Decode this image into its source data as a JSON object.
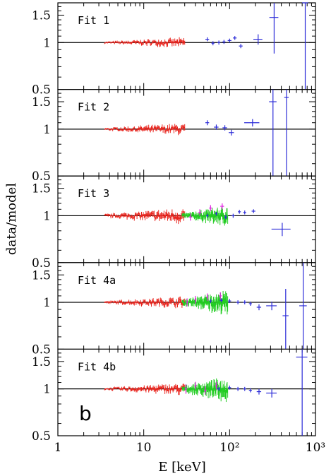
{
  "chart_data": {
    "type": "scatter",
    "xlabel": "E [keV]",
    "ylabel": "data/model",
    "xscale": "log",
    "yscale": "log",
    "xlim": [
      1,
      1000
    ],
    "ylim": [
      0.5,
      1.8
    ],
    "x_tick_labels": [
      "1",
      "10",
      "10²",
      "10³"
    ],
    "y_tick_labels": [
      "0.5",
      "1",
      "1.5"
    ],
    "reference_line": 1,
    "annotation": "b",
    "colors": {
      "red": "#e8231c",
      "blue": "#2c2cd8",
      "green": "#22cc22",
      "magenta": "#e020e0"
    },
    "panels": [
      {
        "label": "Fit 1",
        "series": [
          {
            "color": "red",
            "kind": "dense",
            "x_range": [
              3.5,
              30
            ],
            "scatter": 0.025
          },
          {
            "color": "blue",
            "kind": "points",
            "points": [
              [
                55,
                1.05,
                0.05,
                0.03
              ],
              [
                64,
                0.99,
                0.04,
                0.03
              ],
              [
                75,
                1.0,
                0.04,
                0.03
              ],
              [
                86,
                1.01,
                0.04,
                0.03
              ],
              [
                100,
                1.03,
                0.05,
                0.03
              ],
              [
                115,
                1.07,
                0.05,
                0.03
              ],
              [
                135,
                0.95,
                0.05,
                0.03
              ],
              [
                215,
                1.05,
                0.12,
                0.08
              ],
              [
                330,
                1.45,
                0.12,
                0.6
              ],
              [
                760,
                1.8,
                0.08,
                1.3
              ]
            ]
          }
        ]
      },
      {
        "label": "Fit 2",
        "series": [
          {
            "color": "red",
            "kind": "dense",
            "x_range": [
              3.5,
              30
            ],
            "scatter": 0.03
          },
          {
            "color": "blue",
            "kind": "points",
            "points": [
              [
                55,
                1.1,
                0.05,
                0.04
              ],
              [
                70,
                1.03,
                0.06,
                0.04
              ],
              [
                88,
                1.02,
                0.06,
                0.04
              ],
              [
                105,
                0.95,
                0.07,
                0.04
              ],
              [
                185,
                1.1,
                0.2,
                0.06
              ],
              [
                320,
                1.5,
                0.1,
                1.0
              ],
              [
                460,
                1.6,
                0.06,
                1.2
              ]
            ]
          }
        ]
      },
      {
        "label": "Fit 3",
        "series": [
          {
            "color": "red",
            "kind": "dense",
            "x_range": [
              3.5,
              30
            ],
            "scatter": 0.04
          },
          {
            "color": "green",
            "kind": "dense",
            "x_range": [
              28,
              95
            ],
            "scatter": 0.05
          },
          {
            "color": "magenta",
            "kind": "points",
            "points": [
              [
                35,
                0.98,
                0.04,
                0.05
              ],
              [
                45,
                1.05,
                0.04,
                0.05
              ],
              [
                60,
                1.12,
                0.04,
                0.05
              ],
              [
                82,
                1.15,
                0.05,
                0.05
              ]
            ]
          },
          {
            "color": "blue",
            "kind": "points",
            "points": [
              [
                55,
                1.0,
                0.03,
                0.03
              ],
              [
                70,
                1.03,
                0.03,
                0.03
              ],
              [
                90,
                0.98,
                0.04,
                0.03
              ],
              [
                110,
                1.0,
                0.04,
                0.03
              ],
              [
                130,
                1.06,
                0.04,
                0.03
              ],
              [
                150,
                1.05,
                0.04,
                0.03
              ],
              [
                190,
                1.07,
                0.05,
                0.03
              ],
              [
                410,
                0.82,
                0.25,
                0.08
              ]
            ]
          }
        ]
      },
      {
        "label": "Fit 4a",
        "series": [
          {
            "color": "red",
            "kind": "dense",
            "x_range": [
              3.5,
              30
            ],
            "scatter": 0.03
          },
          {
            "color": "green",
            "kind": "dense",
            "x_range": [
              28,
              95
            ],
            "scatter": 0.06
          },
          {
            "color": "magenta",
            "kind": "points",
            "points": [
              [
                32,
                1.0,
                0.03,
                0.06
              ],
              [
                40,
                1.04,
                0.03,
                0.06
              ],
              [
                55,
                1.08,
                0.03,
                0.06
              ],
              [
                78,
                1.1,
                0.04,
                0.06
              ]
            ]
          },
          {
            "color": "blue",
            "kind": "points",
            "points": [
              [
                60,
                1.02,
                0.03,
                0.03
              ],
              [
                80,
                1.03,
                0.04,
                0.03
              ],
              [
                100,
                1.02,
                0.04,
                0.03
              ],
              [
                125,
                1.0,
                0.04,
                0.03
              ],
              [
                150,
                1.0,
                0.04,
                0.03
              ],
              [
                175,
                0.98,
                0.04,
                0.03
              ],
              [
                220,
                0.93,
                0.06,
                0.04
              ],
              [
                310,
                0.95,
                0.14,
                0.06
              ],
              [
                450,
                0.82,
                0.08,
                0.4
              ],
              [
                720,
                0.95,
                0.1,
                0.9
              ]
            ]
          }
        ]
      },
      {
        "label": "Fit 4b",
        "series": [
          {
            "color": "red",
            "kind": "dense",
            "x_range": [
              3.5,
              30
            ],
            "scatter": 0.03
          },
          {
            "color": "green",
            "kind": "dense",
            "x_range": [
              28,
              95
            ],
            "scatter": 0.06
          },
          {
            "color": "magenta",
            "kind": "points",
            "points": [
              [
                31,
                1.0,
                0.03,
                0.07
              ],
              [
                40,
                1.05,
                0.03,
                0.06
              ],
              [
                52,
                0.98,
                0.03,
                0.06
              ],
              [
                70,
                1.05,
                0.04,
                0.06
              ]
            ]
          },
          {
            "color": "blue",
            "kind": "points",
            "points": [
              [
                75,
                1.0,
                0.04,
                0.03
              ],
              [
                100,
                1.02,
                0.04,
                0.03
              ],
              [
                125,
                1.0,
                0.04,
                0.03
              ],
              [
                150,
                1.0,
                0.04,
                0.03
              ],
              [
                175,
                0.98,
                0.04,
                0.03
              ],
              [
                220,
                0.96,
                0.06,
                0.04
              ],
              [
                310,
                0.94,
                0.14,
                0.06
              ],
              [
                700,
                1.6,
                0.15,
                1.2
              ]
            ]
          }
        ]
      }
    ]
  }
}
